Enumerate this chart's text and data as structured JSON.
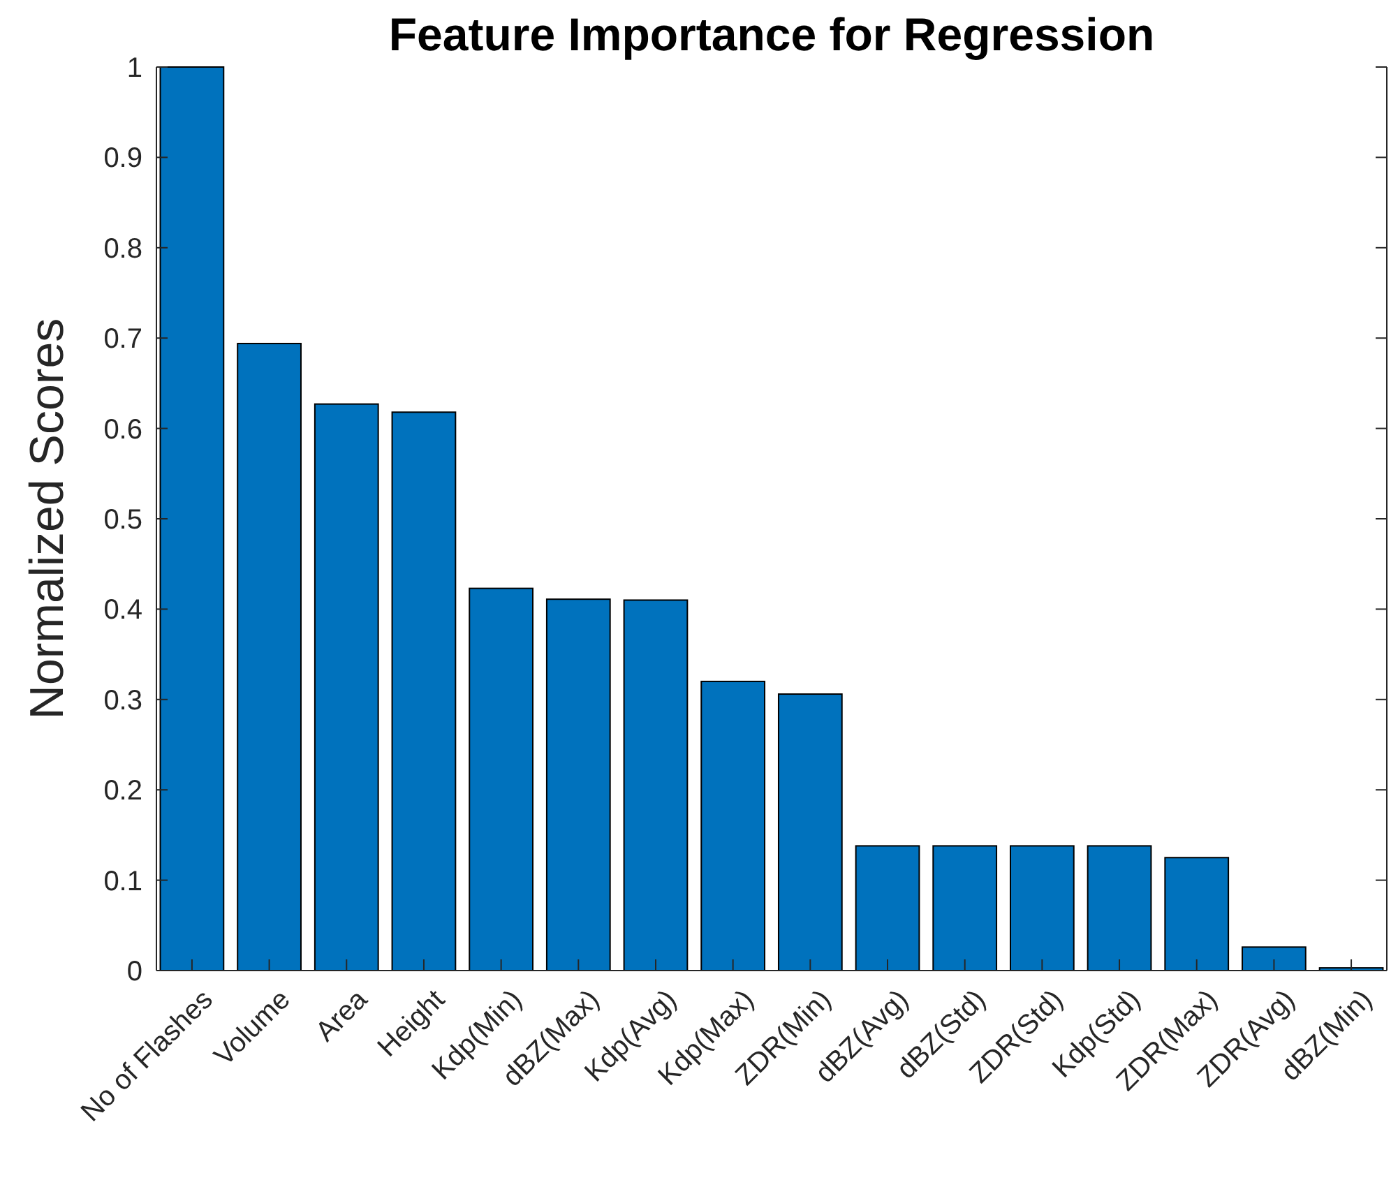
{
  "chart_data": {
    "type": "bar",
    "title": "Feature Importance for Regression",
    "ylabel": "Normalized Scores",
    "categories": [
      "No of Flashes",
      "Volume",
      "Area",
      "Height",
      "Kdp(Min)",
      "dBZ(Max)",
      "Kdp(Avg)",
      "Kdp(Max)",
      "ZDR(Min)",
      "dBZ(Avg)",
      "dBZ(Std)",
      "ZDR(Std)",
      "Kdp(Std)",
      "ZDR(Max)",
      "ZDR(Avg)",
      "dBZ(Min)"
    ],
    "values": [
      1,
      0.694,
      0.627,
      0.618,
      0.423,
      0.411,
      0.41,
      0.32,
      0.306,
      0.138,
      0.138,
      0.138,
      0.138,
      0.125,
      0.026,
      0.003
    ],
    "color": "#0072bd",
    "ylim": [
      0,
      1
    ],
    "yticks": [
      0,
      0.1,
      0.2,
      0.3,
      0.4,
      0.5,
      0.6,
      0.7,
      0.8,
      0.9,
      1
    ],
    "grid": false
  }
}
